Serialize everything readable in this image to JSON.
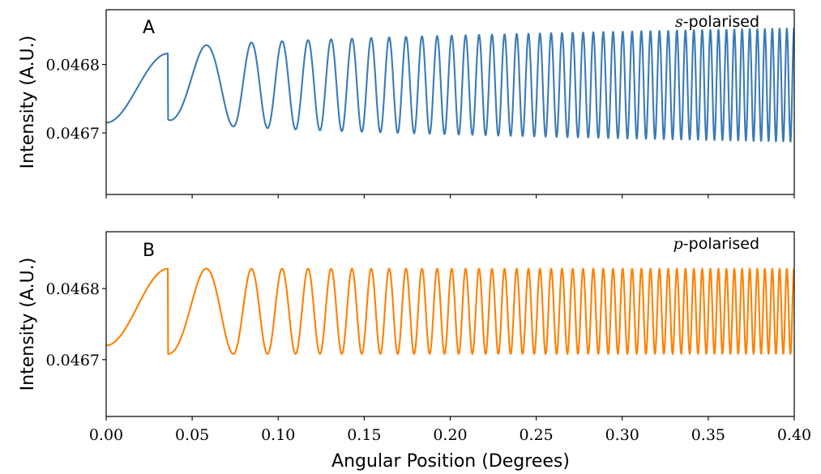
{
  "chart_data": [
    {
      "type": "line",
      "panel_label": "A",
      "annotation": {
        "symbol": "s",
        "text": "-polarised"
      },
      "ylabel": "Intensity (A.U.)",
      "xlim": [
        0.0,
        0.4
      ],
      "ylim": [
        46.61,
        46.88
      ],
      "y_scale_factor": 0.001,
      "yticks": [
        {
          "value": 46.7,
          "label": "0.0467"
        },
        {
          "value": 46.8,
          "label": "0.0468"
        }
      ],
      "xticks": [
        0.0,
        0.05,
        0.1,
        0.15,
        0.2,
        0.25,
        0.3,
        0.35,
        0.4
      ],
      "show_xtick_labels": false,
      "grid": false,
      "series": [
        {
          "color": "#3b7bb5",
          "model": {
            "start": 46.715,
            "center": 46.77,
            "first_peak": 46.816,
            "amp_min": 0.05,
            "amp_max": 0.083,
            "first_peak_x": 0.036,
            "second_peak_x": 0.074,
            "end_peak_x": 0.3978,
            "peak_count": 48,
            "samples": 2400
          }
        }
      ]
    },
    {
      "type": "line",
      "panel_label": "B",
      "annotation": {
        "symbol": "p",
        "text": "-polarised"
      },
      "ylabel": "Intensity (A.U.)",
      "xlabel": "Angular Position (Degrees)",
      "xlim": [
        0.0,
        0.4
      ],
      "ylim": [
        46.62,
        46.88
      ],
      "y_scale_factor": 0.001,
      "yticks": [
        {
          "value": 46.7,
          "label": "0.0467"
        },
        {
          "value": 46.8,
          "label": "0.0468"
        }
      ],
      "xticks": [
        0.0,
        0.05,
        0.1,
        0.15,
        0.2,
        0.25,
        0.3,
        0.35,
        0.4
      ],
      "xtick_labels": [
        "0.00",
        "0.05",
        "0.10",
        "0.15",
        "0.20",
        "0.25",
        "0.30",
        "0.35",
        "0.40"
      ],
      "show_xtick_labels": true,
      "grid": false,
      "series": [
        {
          "color": "#ff8000",
          "model": {
            "start": 46.72,
            "center": 46.768,
            "first_peak": 46.828,
            "amp_min": 0.06,
            "amp_max": 0.06,
            "first_peak_x": 0.036,
            "second_peak_x": 0.074,
            "end_peak_x": 0.3978,
            "peak_count": 48,
            "samples": 2400
          }
        }
      ]
    }
  ]
}
